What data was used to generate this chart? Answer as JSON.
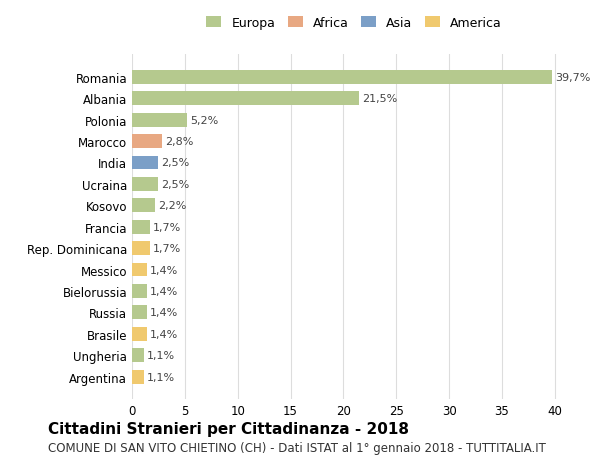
{
  "countries": [
    "Romania",
    "Albania",
    "Polonia",
    "Marocco",
    "India",
    "Ucraina",
    "Kosovo",
    "Francia",
    "Rep. Dominicana",
    "Messico",
    "Bielorussia",
    "Russia",
    "Brasile",
    "Ungheria",
    "Argentina"
  ],
  "values": [
    39.7,
    21.5,
    5.2,
    2.8,
    2.5,
    2.5,
    2.2,
    1.7,
    1.7,
    1.4,
    1.4,
    1.4,
    1.4,
    1.1,
    1.1
  ],
  "labels": [
    "39,7%",
    "21,5%",
    "5,2%",
    "2,8%",
    "2,5%",
    "2,5%",
    "2,2%",
    "1,7%",
    "1,7%",
    "1,4%",
    "1,4%",
    "1,4%",
    "1,4%",
    "1,1%",
    "1,1%"
  ],
  "colors": [
    "#b5c98e",
    "#b5c98e",
    "#b5c98e",
    "#e8a882",
    "#7b9fc7",
    "#b5c98e",
    "#b5c98e",
    "#b5c98e",
    "#f0c96e",
    "#f0c96e",
    "#b5c98e",
    "#b5c98e",
    "#f0c96e",
    "#b5c98e",
    "#f0c96e"
  ],
  "continents": [
    "Europa",
    "Africa",
    "Asia",
    "America"
  ],
  "continent_colors": [
    "#b5c98e",
    "#e8a882",
    "#7b9fc7",
    "#f0c96e"
  ],
  "title": "Cittadini Stranieri per Cittadinanza - 2018",
  "subtitle": "COMUNE DI SAN VITO CHIETINO (CH) - Dati ISTAT al 1° gennaio 2018 - TUTTITALIA.IT",
  "xlim": [
    0,
    42
  ],
  "xticks": [
    0,
    5,
    10,
    15,
    20,
    25,
    30,
    35,
    40
  ],
  "background_color": "#ffffff",
  "grid_color": "#dddddd",
  "bar_height": 0.65,
  "title_fontsize": 11,
  "subtitle_fontsize": 8.5,
  "label_fontsize": 8,
  "tick_fontsize": 8.5,
  "legend_fontsize": 9
}
